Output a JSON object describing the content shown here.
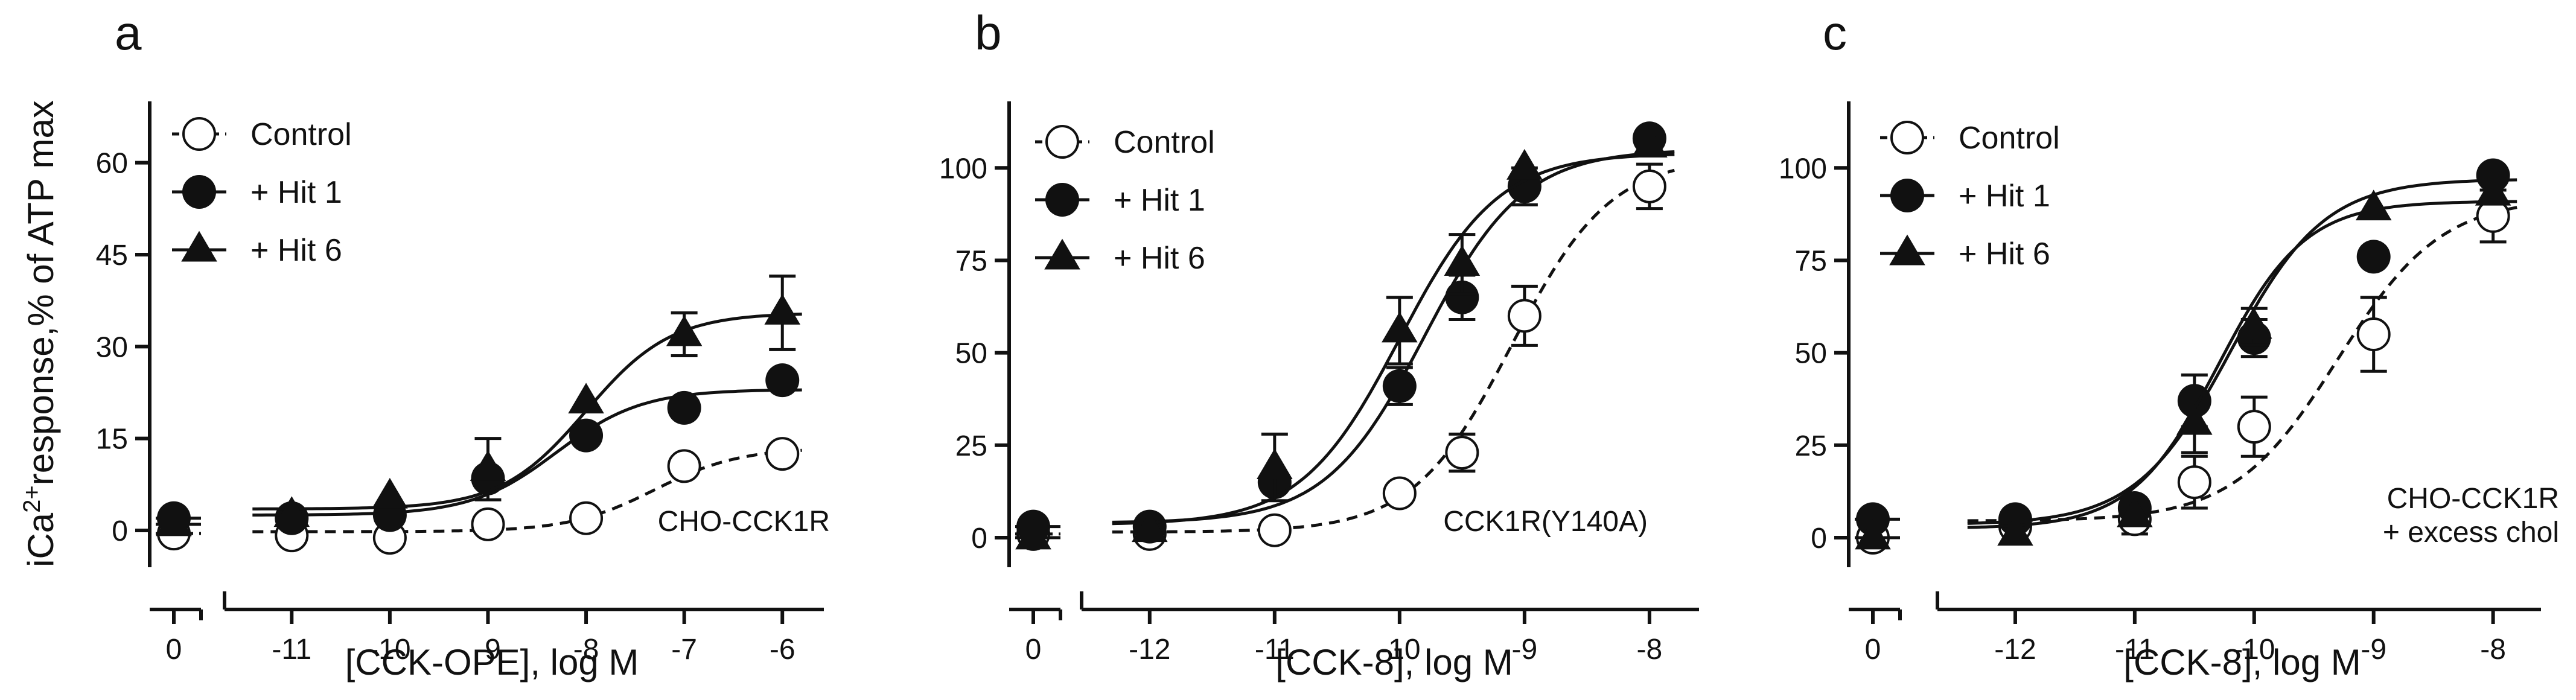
{
  "figure": {
    "ylabel_prefix": "iCa",
    "ylabel_superscript": "2+",
    "ylabel_suffix": "response,% of ATP max"
  },
  "chart_data": [
    {
      "type": "scatter",
      "panel_letter": "a",
      "annotation": [
        "CHO-CCK1R"
      ],
      "xlabel": "[CCK-OPE], log M",
      "ylabel": "iCa2+response,% of ATP max",
      "xlim": [
        -11.5,
        -5.7
      ],
      "ylim": [
        -6,
        70
      ],
      "yticks": [
        0,
        15,
        30,
        45,
        60
      ],
      "ytick_labels": [
        "0",
        "15",
        "30",
        "45",
        "60"
      ],
      "xticks": [
        -11,
        -10,
        -9,
        -8,
        -7,
        -6
      ],
      "xtick_labels": [
        "-11",
        "-10",
        "-9",
        "-8",
        "-7",
        "-6"
      ],
      "zero_tick_label": "0",
      "legend_position": "top-left",
      "series": [
        {
          "name": "Control",
          "marker": "open-circle",
          "line": "dashed",
          "zero": -0.5,
          "zero_err": 0,
          "x": [
            -11,
            -10,
            -9,
            -8,
            -7,
            -6
          ],
          "y": [
            -0.8,
            -1.2,
            1,
            2,
            10.5,
            12.5
          ],
          "err": [
            0,
            0,
            0,
            0,
            0,
            0
          ],
          "fit": {
            "bottom": -0.2,
            "top": 13.5,
            "logec50": -7.3,
            "hill": 1
          }
        },
        {
          "name": "+ Hit 1",
          "marker": "filled-circle",
          "line": "solid",
          "zero": 2,
          "zero_err": 0,
          "x": [
            -11,
            -10,
            -9,
            -8,
            -7,
            -6
          ],
          "y": [
            2,
            2.5,
            8.5,
            15.5,
            20,
            24.5
          ],
          "err": [
            0,
            0,
            0,
            0,
            0,
            0
          ],
          "fit": {
            "bottom": 2.5,
            "top": 23,
            "logec50": -8.3,
            "hill": 1
          }
        },
        {
          "name": "+ Hit 6",
          "marker": "filled-triangle",
          "line": "solid",
          "zero": 1,
          "zero_err": 0,
          "x": [
            -11,
            -10,
            -9,
            -8,
            -7,
            -6
          ],
          "y": [
            2.5,
            5.5,
            10,
            21,
            32,
            35.5
          ],
          "err": [
            0,
            0,
            5,
            0,
            3.5,
            6
          ],
          "fit": {
            "bottom": 3.5,
            "top": 35.5,
            "logec50": -8.0,
            "hill": 1
          }
        }
      ]
    },
    {
      "type": "scatter",
      "panel_letter": "b",
      "annotation": [
        "CCK1R(Y140A)"
      ],
      "xlabel": "[CCK-8], log M",
      "ylabel": "iCa2+response,% of ATP max",
      "xlim": [
        -12.4,
        -7.7
      ],
      "ylim": [
        -8,
        118
      ],
      "yticks": [
        0,
        25,
        50,
        75,
        100
      ],
      "ytick_labels": [
        "0",
        "25",
        "50",
        "75",
        "100"
      ],
      "xticks": [
        -12,
        -11,
        -10,
        -9,
        -8
      ],
      "xtick_labels": [
        "-12",
        "-11",
        "-10",
        "-9",
        "-8"
      ],
      "zero_tick_label": "0",
      "legend_position": "top-left",
      "series": [
        {
          "name": "Control",
          "marker": "open-circle",
          "line": "dashed",
          "zero": 1,
          "zero_err": 0,
          "x": [
            -12,
            -11,
            -10,
            -9.5,
            -9,
            -8
          ],
          "y": [
            1,
            2,
            12,
            23,
            60,
            95
          ],
          "err": [
            0,
            0,
            0,
            5,
            8,
            6
          ],
          "fit": {
            "bottom": 1.5,
            "top": 103,
            "logec50": -9.1,
            "hill": 1.1
          }
        },
        {
          "name": "+ Hit 1",
          "marker": "filled-circle",
          "line": "solid",
          "zero": 3,
          "zero_err": 0,
          "x": [
            -12,
            -11,
            -10,
            -9.5,
            -9,
            -8
          ],
          "y": [
            3,
            15,
            41,
            65,
            95,
            108
          ],
          "err": [
            0,
            0,
            5,
            6,
            5,
            0
          ],
          "fit": {
            "bottom": 4,
            "top": 105,
            "logec50": -9.8,
            "hill": 1.1
          }
        },
        {
          "name": "+ Hit 6",
          "marker": "filled-triangle",
          "line": "solid",
          "zero": 0,
          "zero_err": 0,
          "x": [
            -12,
            -11,
            -10,
            -9.5,
            -9,
            -8
          ],
          "y": [
            2,
            19,
            56,
            74,
            100,
            106
          ],
          "err": [
            0,
            9,
            9,
            8,
            0,
            0
          ],
          "fit": {
            "bottom": 3.5,
            "top": 104,
            "logec50": -10.0,
            "hill": 1.1
          }
        }
      ]
    },
    {
      "type": "scatter",
      "panel_letter": "c",
      "annotation": [
        "CHO-CCK1R",
        "+ excess chol"
      ],
      "xlabel": "[CCK-8], log M",
      "ylabel": "iCa2+response,% of ATP max",
      "xlim": [
        -12.5,
        -7.7
      ],
      "ylim": [
        -8,
        118
      ],
      "yticks": [
        0,
        25,
        50,
        75,
        100
      ],
      "ytick_labels": [
        "0",
        "25",
        "50",
        "75",
        "100"
      ],
      "xticks": [
        -12,
        -11,
        -10,
        -9,
        -8
      ],
      "xtick_labels": [
        "-12",
        "-11",
        "-10",
        "-9",
        "-8"
      ],
      "zero_tick_label": "0",
      "legend_position": "top-left",
      "series": [
        {
          "name": "Control",
          "marker": "open-circle",
          "line": "dashed",
          "zero": 0,
          "zero_err": 0,
          "x": [
            -12,
            -11,
            -10.5,
            -10,
            -9,
            -8
          ],
          "y": [
            3,
            5,
            15,
            30,
            55,
            87
          ],
          "err": [
            0,
            4,
            7,
            8,
            10,
            7
          ],
          "fit": {
            "bottom": 4.5,
            "top": 92,
            "logec50": -9.3,
            "hill": 1
          }
        },
        {
          "name": "+ Hit 1",
          "marker": "filled-circle",
          "line": "solid",
          "zero": 5,
          "zero_err": 0,
          "x": [
            -12,
            -11,
            -10.5,
            -10,
            -9,
            -8
          ],
          "y": [
            5,
            8,
            37,
            54,
            76,
            98
          ],
          "err": [
            0,
            0,
            7,
            5,
            0,
            0
          ],
          "fit": {
            "bottom": 3.5,
            "top": 97,
            "logec50": -10.2,
            "hill": 1.1
          }
        },
        {
          "name": "+ Hit 6",
          "marker": "filled-triangle",
          "line": "solid",
          "zero": 0,
          "zero_err": 0,
          "x": [
            -12,
            -11,
            -10.5,
            -10,
            -9,
            -8
          ],
          "y": [
            1,
            6,
            31,
            57,
            89,
            93
          ],
          "err": [
            0,
            0,
            8,
            5,
            0,
            0
          ],
          "fit": {
            "bottom": 2.5,
            "top": 91,
            "logec50": -10.3,
            "hill": 1.2
          }
        }
      ]
    }
  ]
}
